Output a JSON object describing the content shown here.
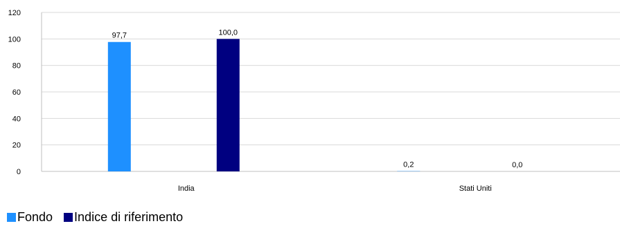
{
  "chart_data": {
    "type": "bar",
    "categories": [
      "India",
      "Stati Uniti"
    ],
    "series": [
      {
        "name": "Fondo",
        "values": [
          97.7,
          0.2
        ],
        "labels": [
          "97,7",
          "0,2"
        ],
        "color": "#1e90ff"
      },
      {
        "name": "Indice di riferimento",
        "values": [
          100.0,
          0.0
        ],
        "labels": [
          "100,0",
          "0,0"
        ],
        "color": "#000080"
      }
    ],
    "y_ticks": [
      "0",
      "20",
      "40",
      "60",
      "80",
      "100",
      "120"
    ],
    "ylim": [
      0,
      120
    ],
    "grid": true,
    "legend_position": "bottom-left",
    "title": "",
    "xlabel": "",
    "ylabel": ""
  }
}
